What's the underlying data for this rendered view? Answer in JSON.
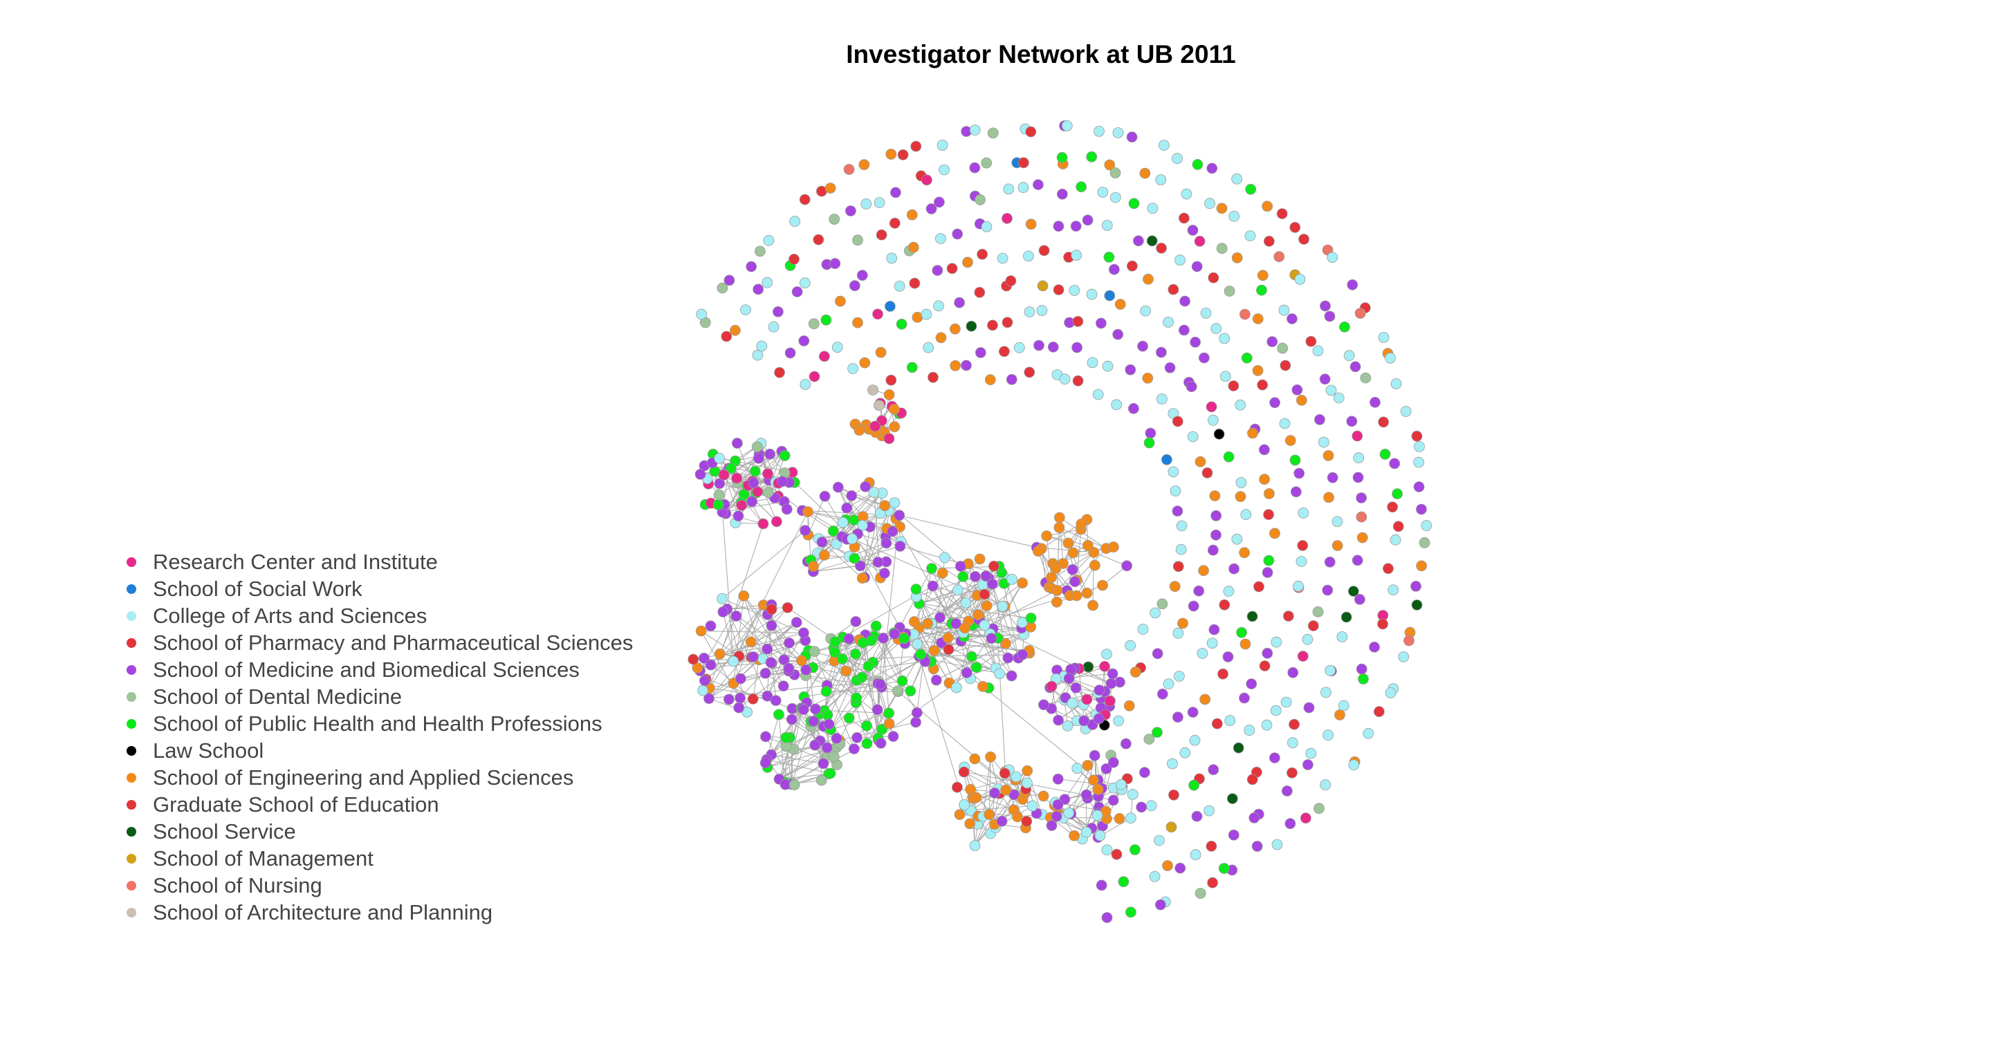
{
  "title": "Investigator Network at UB 2011",
  "legend": [
    {
      "label": "Research Center and Institute",
      "color": "#e7298a"
    },
    {
      "label": "School of Social Work",
      "color": "#1e7fd9"
    },
    {
      "label": "College of Arts and Sciences",
      "color": "#a6eef5"
    },
    {
      "label": "School of Pharmacy and Pharmaceutical Sciences",
      "color": "#e3343b"
    },
    {
      "label": "School of Medicine and Biomedical Sciences",
      "color": "#a544e0"
    },
    {
      "label": "School of Dental Medicine",
      "color": "#9ec49a"
    },
    {
      "label": "School of Public Health and Health Professions",
      "color": "#0de81b"
    },
    {
      "label": "Law School",
      "color": "#000000"
    },
    {
      "label": "School of Engineering and Applied Sciences",
      "color": "#f28a1a"
    },
    {
      "label": "Graduate School of Education",
      "color": "#e3343b"
    },
    {
      "label": "School Service",
      "color": "#0a5c15"
    },
    {
      "label": "School of Management",
      "color": "#d4a017"
    },
    {
      "label": "School of Nursing",
      "color": "#ee7465"
    },
    {
      "label": "School of Architecture and Planning",
      "color": "#c9bfb2"
    }
  ]
}
